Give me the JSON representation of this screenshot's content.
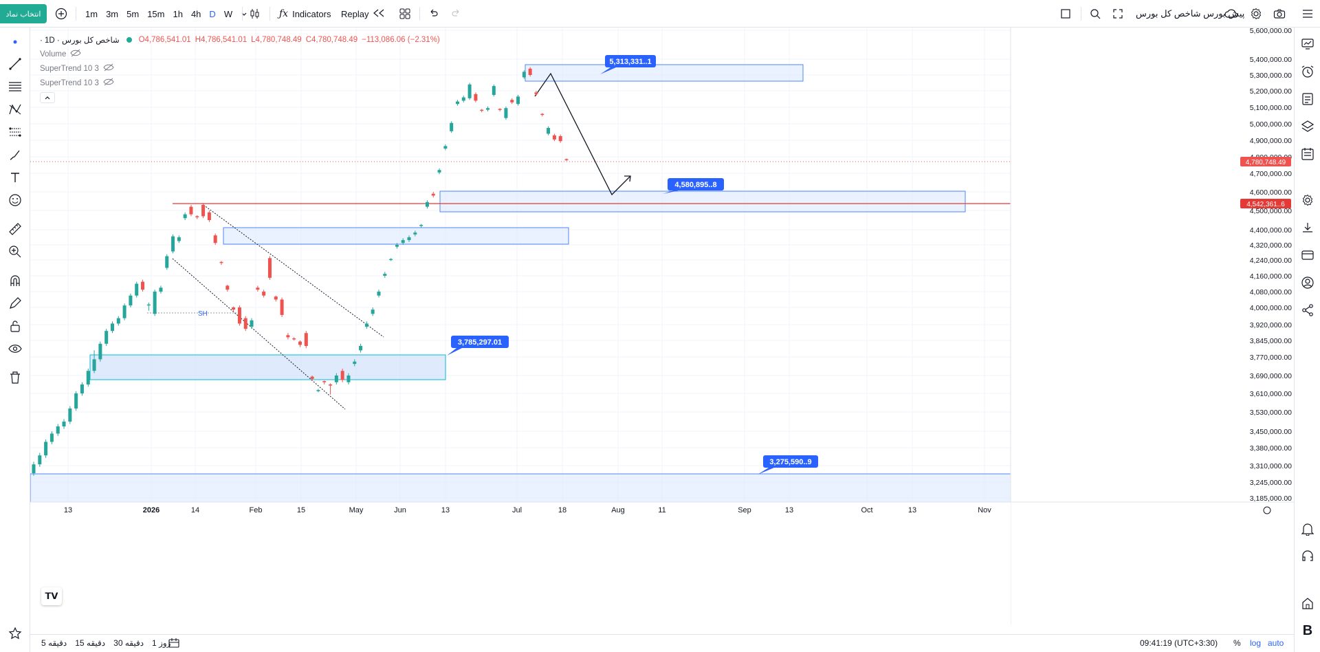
{
  "toolbar": {
    "symbol_button": "انتخاب نماد",
    "intervals": [
      "1m",
      "3m",
      "5m",
      "15m",
      "1h",
      "4h",
      "D",
      "W"
    ],
    "active_interval": "D",
    "indicators_label": "Indicators",
    "replay_label": "Replay",
    "right_title": "پیش بورس شاخص کل بورس"
  },
  "legend": {
    "symbol": "شاخص کل بورس · 1D ·",
    "open": "O4,786,541.01",
    "high": "H4,786,541.01",
    "low": "L4,780,748.49",
    "close": "C4,780,748.49",
    "change": "−113,086.06 (−2.31%)",
    "volume_label": "Volume",
    "supertrend_1": "SuperTrend 10 3",
    "supertrend_2": "SuperTrend 10 3"
  },
  "price_axis": [
    "5,600,000.00",
    "5,400,000.00",
    "5,300,000.00",
    "5,200,000.00",
    "5,100,000.00",
    "5,000,000.00",
    "4,900,000.00",
    "4,800,000.00",
    "4,700,000.00",
    "4,600,000.00",
    "4,500,000.00",
    "4,400,000.00",
    "4,320,000.00",
    "4,240,000.00",
    "4,160,000.00",
    "4,080,000.00",
    "4,000,000.00",
    "3,920,000.00",
    "3,845,000.00",
    "3,770,000.00",
    "3,690,000.00",
    "3,610,000.00",
    "3,530,000.00",
    "3,450,000.00",
    "3,380,000.00",
    "3,310,000.00",
    "3,245,000.00",
    "3,185,000.00"
  ],
  "price_tags": {
    "last": "4,780,748.49",
    "line": "4,542,361.­.6"
  },
  "time_axis": [
    "13",
    "2026",
    "14",
    "Feb",
    "15",
    "May",
    "Jun",
    "13",
    "Jul",
    "18",
    "Aug",
    "11",
    "Sep",
    "13",
    "Oct",
    "13",
    "Nov"
  ],
  "callouts": {
    "top": "5,313,331..1",
    "mid": "4,580,895..8",
    "low": "3,785,297.01",
    "bottom": "3,275,590..9"
  },
  "sh_label": "SH",
  "bottom": {
    "ranges": [
      "5 دقیقه",
      "15 دقیقه",
      "30 دقیقه",
      "1 روز"
    ],
    "clock": "09:41:19 (UTC+3:30)",
    "percent": "%",
    "log": "log",
    "auto": "auto"
  },
  "colors": {
    "up": "#26a69a",
    "down": "#ef5350",
    "zone_fill": "#dbe7ff",
    "zone_stroke": "#4f86f7",
    "callout": "#2962ff",
    "red_line": "#e53935"
  },
  "chart_data": {
    "type": "candlestick",
    "y_range": [
      3150000,
      5650000
    ],
    "scale": "linear",
    "grid": true,
    "candles": [
      [
        3280000,
        3315000,
        3270000,
        3325000
      ],
      [
        3315000,
        3350000,
        3305000,
        3360000
      ],
      [
        3350000,
        3405000,
        3340000,
        3415000
      ],
      [
        3405000,
        3440000,
        3395000,
        3450000
      ],
      [
        3440000,
        3470000,
        3430000,
        3480000
      ],
      [
        3470000,
        3490000,
        3460000,
        3500000
      ],
      [
        3490000,
        3545000,
        3480000,
        3555000
      ],
      [
        3545000,
        3610000,
        3535000,
        3620000
      ],
      [
        3610000,
        3650000,
        3600000,
        3660000
      ],
      [
        3650000,
        3710000,
        3640000,
        3720000
      ],
      [
        3710000,
        3760000,
        3700000,
        3800000
      ],
      [
        3760000,
        3830000,
        3750000,
        3840000
      ],
      [
        3830000,
        3890000,
        3820000,
        3900000
      ],
      [
        3890000,
        3925000,
        3880000,
        3935000
      ],
      [
        3925000,
        3950000,
        3915000,
        3960000
      ],
      [
        3950000,
        4010000,
        3940000,
        4020000
      ],
      [
        4010000,
        4060000,
        4000000,
        4070000
      ],
      [
        4060000,
        4120000,
        4050000,
        4130000
      ],
      [
        4130000,
        4090000,
        4080000,
        4140000
      ],
      [
        4010000,
        4015000,
        3985000,
        4025000
      ],
      [
        3970000,
        4080000,
        3960000,
        4090000
      ],
      [
        4080000,
        4100000,
        4070000,
        4110000
      ],
      [
        4200000,
        4260000,
        4190000,
        4270000
      ],
      [
        4285000,
        4365000,
        4275000,
        4375000
      ],
      [
        4340000,
        4360000,
        4330000,
        4370000
      ],
      [
        4460000,
        4480000,
        4450000,
        4490000
      ],
      [
        4520000,
        4480000,
        4470000,
        4530000
      ],
      [
        4470000,
        4465000,
        4455000,
        4475000
      ],
      [
        4530000,
        4470000,
        4460000,
        4540000
      ],
      [
        4490000,
        4450000,
        4440000,
        4500000
      ],
      [
        4370000,
        4330000,
        4320000,
        4380000
      ],
      [
        4230000,
        4225000,
        4215000,
        4235000
      ],
      [
        4110000,
        4090000,
        4080000,
        4115000
      ],
      [
        4000000,
        3990000,
        3980000,
        4005000
      ],
      [
        4000000,
        3925000,
        3915000,
        4010000
      ],
      [
        3950000,
        3900000,
        3890000,
        3960000
      ],
      [
        3910000,
        3940000,
        3900000,
        3950000
      ],
      [
        4100000,
        4090000,
        4080000,
        4110000
      ],
      [
        4080000,
        4060000,
        4050000,
        4090000
      ],
      [
        4250000,
        4150000,
        4140000,
        4260000
      ],
      [
        4055000,
        4040000,
        4030000,
        4060000
      ],
      [
        4040000,
        3965000,
        3955000,
        4050000
      ],
      [
        3870000,
        3860000,
        3850000,
        3880000
      ],
      [
        3855000,
        3850000,
        3845000,
        3860000
      ],
      [
        3840000,
        3825000,
        3815000,
        3845000
      ],
      [
        3880000,
        3820000,
        3810000,
        3890000
      ],
      [
        3685000,
        3675000,
        3665000,
        3690000
      ],
      [
        3620000,
        3625000,
        3615000,
        3630000
      ],
      [
        3665000,
        3660000,
        3650000,
        3668000
      ],
      [
        3650000,
        3645000,
        3605000,
        3655000
      ],
      [
        3660000,
        3690000,
        3650000,
        3700000
      ],
      [
        3710000,
        3670000,
        3660000,
        3720000
      ],
      [
        3660000,
        3690000,
        3650000,
        3700000
      ],
      [
        3740000,
        3750000,
        3730000,
        3760000
      ],
      [
        3800000,
        3820000,
        3790000,
        3830000
      ],
      [
        3910000,
        3925000,
        3900000,
        3935000
      ],
      [
        3970000,
        3990000,
        3960000,
        4000000
      ],
      [
        4060000,
        4080000,
        4050000,
        4090000
      ],
      [
        4160000,
        4170000,
        4150000,
        4180000
      ],
      [
        4240000,
        4245000,
        4235000,
        4250000
      ],
      [
        4310000,
        4320000,
        4300000,
        4330000
      ],
      [
        4330000,
        4345000,
        4320000,
        4355000
      ],
      [
        4345000,
        4360000,
        4335000,
        4370000
      ],
      [
        4375000,
        4385000,
        4365000,
        4395000
      ],
      [
        4420000,
        4425000,
        4410000,
        4430000
      ],
      [
        4520000,
        4545000,
        4510000,
        4555000
      ],
      [
        4590000,
        4580000,
        4570000,
        4600000
      ],
      [
        4705000,
        4720000,
        4695000,
        4730000
      ],
      [
        4850000,
        4865000,
        4840000,
        4875000
      ],
      [
        4955000,
        5005000,
        4945000,
        5015000
      ],
      [
        5120000,
        5135000,
        5110000,
        5145000
      ],
      [
        5140000,
        5160000,
        5130000,
        5170000
      ],
      [
        5155000,
        5240000,
        5145000,
        5250000
      ],
      [
        5180000,
        5140000,
        5130000,
        5190000
      ],
      [
        5085000,
        5080000,
        5070000,
        5090000
      ],
      [
        5085000,
        5095000,
        5075000,
        5105000
      ],
      [
        5175000,
        5230000,
        5165000,
        5240000
      ],
      [
        5090000,
        5085000,
        5075000,
        5095000
      ],
      [
        5035000,
        5095000,
        5025000,
        5105000
      ],
      [
        5145000,
        5130000,
        5120000,
        5155000
      ],
      [
        5120000,
        5165000,
        5110000,
        5175000
      ],
      [
        5285000,
        5320000,
        5275000,
        5330000
      ],
      [
        5340000,
        5300000,
        5290000,
        5350000
      ],
      [
        5190000,
        5180000,
        5170000,
        5200000
      ],
      [
        5060000,
        5055000,
        5045000,
        5065000
      ],
      [
        4940000,
        4975000,
        4930000,
        4985000
      ],
      [
        4930000,
        4905000,
        4895000,
        4940000
      ],
      [
        4925000,
        4895000,
        4885000,
        4935000
      ],
      [
        4786000,
        4780000,
        4775000,
        4790000
      ]
    ]
  }
}
